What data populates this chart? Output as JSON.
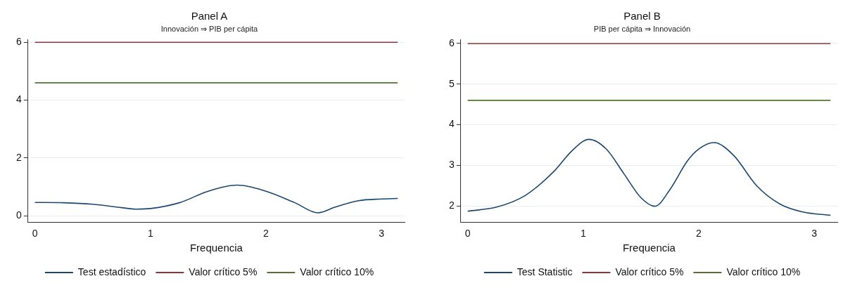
{
  "chart_data": [
    {
      "type": "line",
      "title": "Panel A",
      "subtitle": "Innovación ⇒ PIB per cápita",
      "xlabel": "Frequencia",
      "xlim": [
        -0.06,
        3.2
      ],
      "xticks": [
        0,
        1,
        2,
        3
      ],
      "ylim": [
        -0.22,
        6.1
      ],
      "yticks": [
        0,
        2,
        4,
        6
      ],
      "grid": "y",
      "legend": "bottom",
      "marker": "none",
      "line_style": "solid",
      "series": [
        {
          "name": "Test estadístico",
          "color": "#1a476f",
          "x": [
            0,
            0.25,
            0.5,
            0.75,
            0.875,
            1.0,
            1.25,
            1.5,
            1.75,
            2.0,
            2.25,
            2.45,
            2.6,
            2.8,
            3.0,
            3.14
          ],
          "values": [
            0.46,
            0.45,
            0.4,
            0.28,
            0.23,
            0.25,
            0.45,
            0.85,
            1.06,
            0.85,
            0.45,
            0.1,
            0.3,
            0.52,
            0.58,
            0.6
          ]
        },
        {
          "name": "Valor crítico 5%",
          "color": "#90353b",
          "x": [
            0,
            3.14
          ],
          "values": [
            6,
            6
          ]
        },
        {
          "name": "Valor crítico 10%",
          "color": "#55752f",
          "x": [
            0,
            3.14
          ],
          "values": [
            4.6,
            4.6
          ]
        }
      ]
    },
    {
      "type": "line",
      "title": "Panel B",
      "subtitle": "PIB per cápita ⇒ Innovación",
      "xlabel": "Frequencia",
      "xlim": [
        -0.06,
        3.2
      ],
      "xticks": [
        0,
        1,
        2,
        3
      ],
      "ylim": [
        1.6,
        6.1
      ],
      "yticks": [
        2,
        3,
        4,
        5,
        6
      ],
      "grid": "y",
      "legend": "bottom",
      "marker": "none",
      "line_style": "solid",
      "series": [
        {
          "name": "Test Statistic",
          "color": "#1a476f",
          "x": [
            0,
            0.25,
            0.5,
            0.75,
            0.9,
            1.05,
            1.2,
            1.35,
            1.5,
            1.62,
            1.75,
            1.9,
            2.0,
            2.13,
            2.3,
            2.5,
            2.7,
            2.9,
            3.14
          ],
          "values": [
            1.87,
            1.97,
            2.26,
            2.86,
            3.35,
            3.64,
            3.4,
            2.8,
            2.2,
            1.99,
            2.4,
            3.1,
            3.4,
            3.56,
            3.25,
            2.5,
            2.05,
            1.85,
            1.77
          ]
        },
        {
          "name": "Valor crítico 5%",
          "color": "#90353b",
          "x": [
            0,
            3.14
          ],
          "values": [
            6,
            6
          ]
        },
        {
          "name": "Valor crítico 10%",
          "color": "#55752f",
          "x": [
            0,
            3.14
          ],
          "values": [
            4.6,
            4.6
          ]
        }
      ]
    }
  ]
}
